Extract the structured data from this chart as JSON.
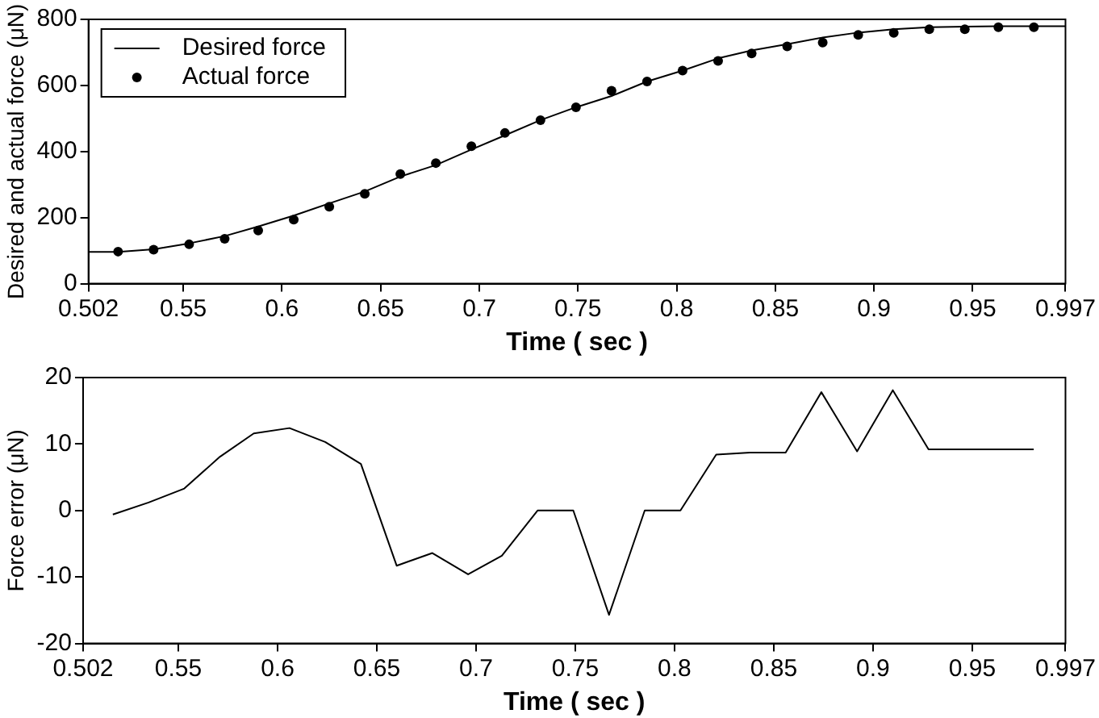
{
  "chart_data": [
    {
      "type": "line",
      "xlabel": "Time ( sec )",
      "ylabel": "Desired and actual force (μN)",
      "xlim": [
        0.502,
        0.997
      ],
      "xticks": [
        0.502,
        0.55,
        0.6,
        0.65,
        0.7,
        0.75,
        0.8,
        0.85,
        0.9,
        0.95,
        0.997
      ],
      "ylim": [
        0,
        800
      ],
      "yticks": [
        0,
        200,
        400,
        600,
        800
      ],
      "grid": false,
      "legend": "top left",
      "series": [
        {
          "name": "Desired force",
          "type": "line",
          "color": "#000000",
          "marker": "none",
          "x": [
            0.502,
            0.517,
            0.535,
            0.553,
            0.571,
            0.588,
            0.606,
            0.624,
            0.642,
            0.66,
            0.678,
            0.696,
            0.713,
            0.731,
            0.749,
            0.767,
            0.785,
            0.803,
            0.821,
            0.838,
            0.856,
            0.874,
            0.892,
            0.91,
            0.928,
            0.946,
            0.963,
            0.981,
            0.997
          ],
          "values": [
            96,
            96,
            104,
            122,
            144,
            173,
            206,
            243,
            279,
            324,
            359,
            406,
            449,
            495,
            534,
            568,
            612,
            645,
            682,
            706,
            725,
            745,
            760,
            770,
            776,
            778,
            779,
            779,
            779
          ]
        },
        {
          "name": "Actual force",
          "type": "scatter",
          "color": "#000000",
          "marker": "circle",
          "x": [
            0.517,
            0.535,
            0.553,
            0.571,
            0.588,
            0.606,
            0.624,
            0.642,
            0.66,
            0.678,
            0.696,
            0.713,
            0.731,
            0.749,
            0.767,
            0.785,
            0.803,
            0.821,
            0.838,
            0.856,
            0.874,
            0.892,
            0.91,
            0.928,
            0.946,
            0.963,
            0.981
          ],
          "values": [
            97,
            103,
            119,
            136,
            161,
            194,
            233,
            272,
            332,
            365,
            416,
            456,
            495,
            534,
            584,
            612,
            645,
            674,
            697,
            718,
            730,
            753,
            759,
            770,
            770,
            776,
            776
          ]
        }
      ]
    },
    {
      "type": "line",
      "xlabel": "Time ( sec )",
      "ylabel": "Force error (μN)",
      "xlim": [
        0.502,
        0.997
      ],
      "xticks": [
        0.502,
        0.55,
        0.6,
        0.65,
        0.7,
        0.75,
        0.8,
        0.85,
        0.9,
        0.95,
        0.997
      ],
      "ylim": [
        -20,
        20
      ],
      "yticks": [
        -20,
        -10,
        0,
        10,
        20
      ],
      "grid": false,
      "series": [
        {
          "color": "#000000",
          "marker": "none",
          "x": [
            0.517,
            0.535,
            0.553,
            0.571,
            0.588,
            0.606,
            0.624,
            0.642,
            0.66,
            0.678,
            0.696,
            0.713,
            0.731,
            0.749,
            0.767,
            0.785,
            0.803,
            0.821,
            0.838,
            0.856,
            0.874,
            0.892,
            0.91,
            0.928,
            0.946,
            0.963,
            0.981
          ],
          "values": [
            -0.6,
            1.2,
            3.3,
            8.1,
            11.6,
            12.4,
            10.3,
            7.0,
            -8.3,
            -6.4,
            -9.6,
            -6.8,
            0,
            0,
            -15.7,
            0,
            0,
            8.4,
            8.7,
            8.7,
            17.8,
            8.9,
            18.1,
            9.2,
            9.2,
            9.2,
            9.2
          ]
        }
      ]
    }
  ]
}
